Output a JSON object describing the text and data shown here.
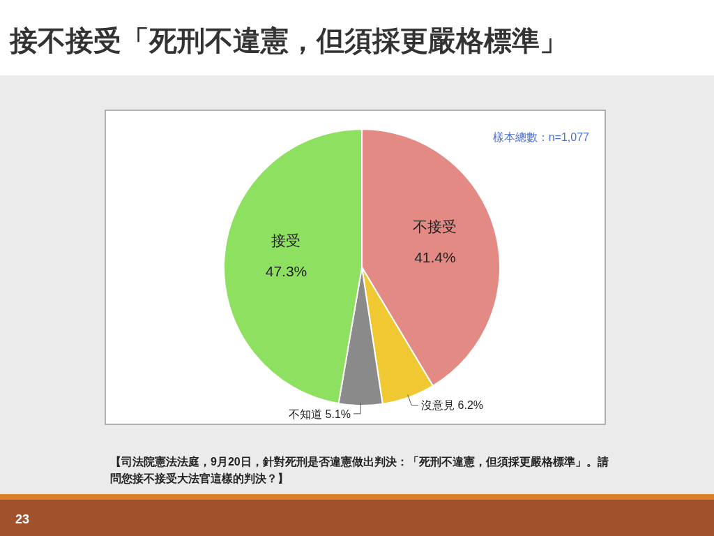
{
  "chart_data": {
    "type": "pie",
    "title": "接不接受「死刑不違憲，但須採更嚴格標準」",
    "categories": [
      "不接受",
      "沒意見",
      "不知道",
      "接受"
    ],
    "values": [
      41.4,
      6.2,
      5.1,
      47.3
    ],
    "value_labels": [
      "41.4%",
      "6.2%",
      "5.1%",
      "47.3%"
    ],
    "colors": [
      "#e48a85",
      "#f0c832",
      "#8a8a8a",
      "#8ee060"
    ],
    "legend": false,
    "annotations": [
      "樣本總數：n=1,077",
      "【司法院憲法法庭，9月20日，針對死刑是否違憲做出判決：「死刑不違憲，但須採更嚴格標準」。請問您接不接受大法官這樣的判決？】",
      "23"
    ]
  }
}
